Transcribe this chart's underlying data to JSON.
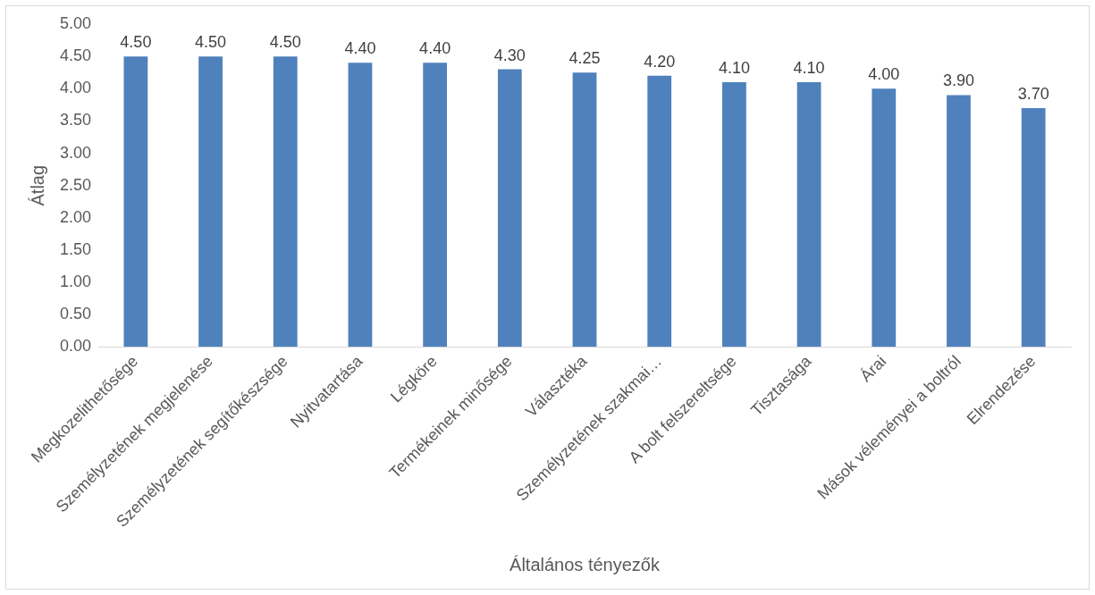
{
  "chart_data": {
    "type": "bar",
    "xlabel": "Általános tényezők",
    "ylabel": "Átlag",
    "categories": [
      "Megkozelithetősége",
      "Személyzetének megjelenése",
      "Személyzetének segítőkészsége",
      "Nyitvatartása",
      "Légköre",
      "Termékeinek minősége",
      "Választéka",
      "Személyzetének szakmai…",
      "A bolt felszereltsége",
      "Tisztasága",
      "Árai",
      "Mások véleményei a boltról",
      "Elrendezése"
    ],
    "values": [
      4.5,
      4.5,
      4.5,
      4.4,
      4.4,
      4.3,
      4.25,
      4.2,
      4.1,
      4.1,
      4.0,
      3.9,
      3.7
    ],
    "value_labels": [
      "4.50",
      "4.50",
      "4.50",
      "4.40",
      "4.40",
      "4.30",
      "4.25",
      "4.20",
      "4.10",
      "4.10",
      "4.00",
      "3.90",
      "3.70"
    ],
    "color": "#4f81bd",
    "ylim": [
      0,
      5
    ],
    "yticks": [
      {
        "value": 0,
        "label": "0.00"
      },
      {
        "value": 0.5,
        "label": "0.50"
      },
      {
        "value": 1,
        "label": "1.00"
      },
      {
        "value": 1.5,
        "label": "1.50"
      },
      {
        "value": 2,
        "label": "2.00"
      },
      {
        "value": 2.5,
        "label": "2.50"
      },
      {
        "value": 3,
        "label": "3.00"
      },
      {
        "value": 3.5,
        "label": "3.50"
      },
      {
        "value": 4,
        "label": "4.00"
      },
      {
        "value": 4.5,
        "label": "4.50"
      },
      {
        "value": 5,
        "label": "5.00"
      }
    ],
    "grid": false,
    "legend": false
  }
}
